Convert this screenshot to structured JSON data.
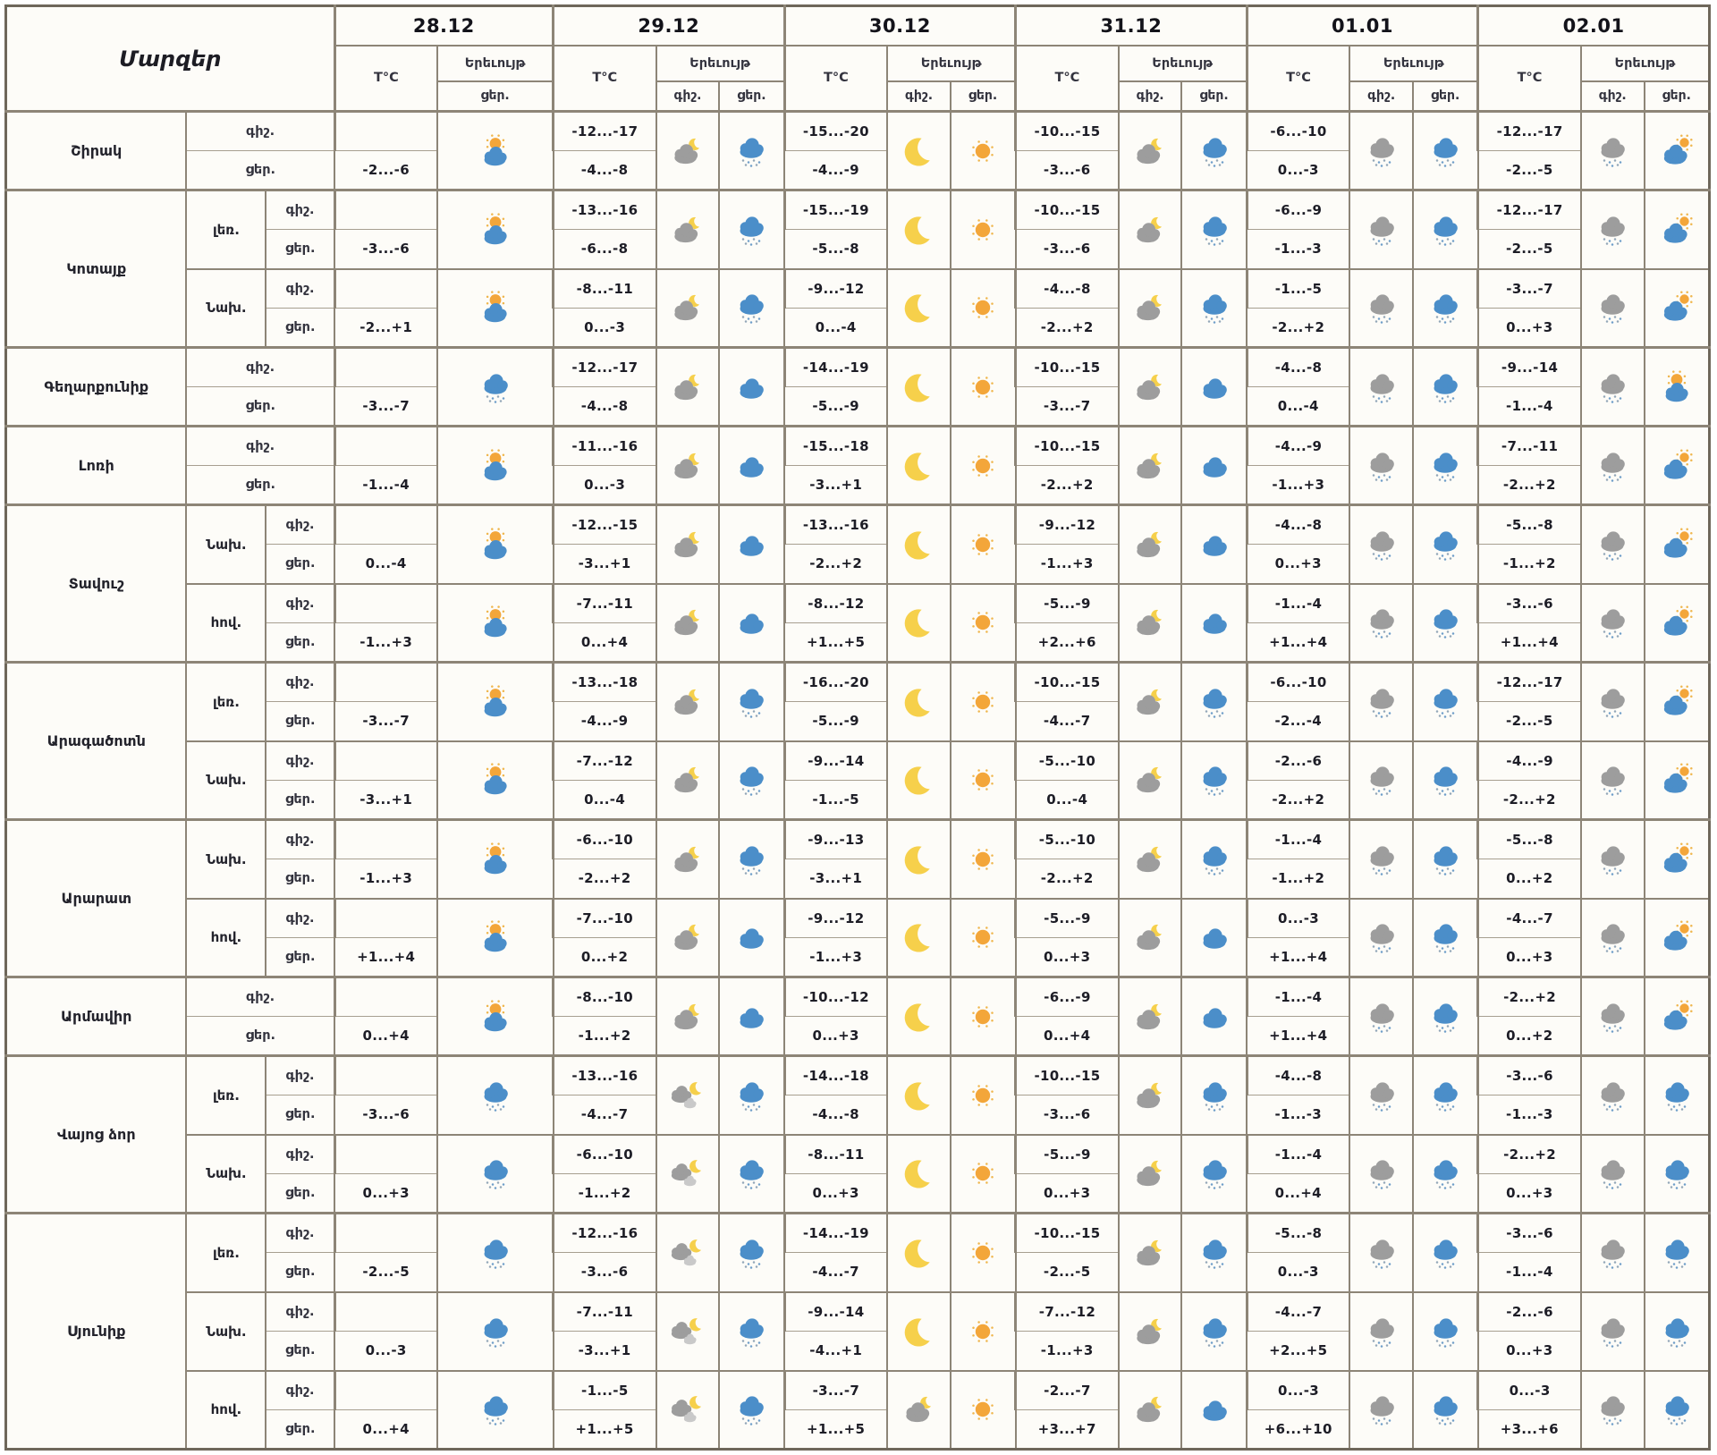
{
  "table": {
    "corner_label": "Մարզեր",
    "temp_label": "T°C",
    "phenomenon_label": "Երեւույթ",
    "night_label": "գիշ.",
    "day_label": "ցեր.",
    "dates": [
      "28.12",
      "29.12",
      "30.12",
      "31.12",
      "01.01",
      "02.01"
    ]
  },
  "colors": {
    "cloud_blue": "#4b8ec9",
    "cloud_grey": "#9d9d9d",
    "cloud_light": "#c9c9c9",
    "sun": "#f3a63a",
    "sun_ray": "#efb64d",
    "moon": "#f6d04b",
    "snow_dot_grey": "#93a7b8",
    "snow_dot_blue": "#6e9ec9",
    "border": "#8d8577",
    "border_dark": "#6e675b",
    "text": "#1d1d26"
  },
  "icon_names": {
    "sun": "clear-sun-icon",
    "moon": "clear-moon-icon",
    "sun-cloud": "sun-behind-cloud-icon",
    "cloud-sun": "cloud-with-sun-icon",
    "cloud-moon": "cloud-with-moon-icon",
    "clouds-moon": "clouds-with-moon-icon",
    "cloud-blue": "cloudy-icon",
    "snow-blue": "snow-cloud-icon",
    "snow-grey": "grey-snow-cloud-icon"
  },
  "regions": [
    {
      "name": "Շիրակ",
      "rows": [
        {
          "sub": "",
          "days": [
            [
              "",
              "-2...-6",
              null,
              "sun-cloud"
            ],
            [
              "-12...-17",
              "-4...-8",
              "cloud-moon",
              "snow-blue"
            ],
            [
              "-15...-20",
              "-4...-9",
              "moon",
              "sun"
            ],
            [
              "-10...-15",
              "-3...-6",
              "cloud-moon",
              "snow-blue"
            ],
            [
              "-6...-10",
              "0...-3",
              "snow-grey",
              "snow-blue"
            ],
            [
              "-12...-17",
              "-2...-5",
              "snow-grey",
              "cloud-sun"
            ]
          ]
        }
      ]
    },
    {
      "name": "Կոտայք",
      "rows": [
        {
          "sub": "լեռ.",
          "days": [
            [
              "",
              "-3...-6",
              null,
              "sun-cloud"
            ],
            [
              "-13...-16",
              "-6...-8",
              "cloud-moon",
              "snow-blue"
            ],
            [
              "-15...-19",
              "-5...-8",
              "moon",
              "sun"
            ],
            [
              "-10...-15",
              "-3...-6",
              "cloud-moon",
              "snow-blue"
            ],
            [
              "-6...-9",
              "-1...-3",
              "snow-grey",
              "snow-blue"
            ],
            [
              "-12...-17",
              "-2...-5",
              "snow-grey",
              "cloud-sun"
            ]
          ]
        },
        {
          "sub": "Նախ.",
          "days": [
            [
              "",
              "-2...+1",
              null,
              "sun-cloud"
            ],
            [
              "-8...-11",
              "0...-3",
              "cloud-moon",
              "snow-blue"
            ],
            [
              "-9...-12",
              "0...-4",
              "moon",
              "sun"
            ],
            [
              "-4...-8",
              "-2...+2",
              "cloud-moon",
              "snow-blue"
            ],
            [
              "-1...-5",
              "-2...+2",
              "snow-grey",
              "snow-blue"
            ],
            [
              "-3...-7",
              "0...+3",
              "snow-grey",
              "cloud-sun"
            ]
          ]
        }
      ]
    },
    {
      "name": "Գեղարքունիք",
      "rows": [
        {
          "sub": "",
          "days": [
            [
              "",
              "-3...-7",
              null,
              "snow-blue"
            ],
            [
              "-12...-17",
              "-4...-8",
              "cloud-moon",
              "cloud-blue"
            ],
            [
              "-14...-19",
              "-5...-9",
              "moon",
              "sun"
            ],
            [
              "-10...-15",
              "-3...-7",
              "cloud-moon",
              "cloud-blue"
            ],
            [
              "-4...-8",
              "0...-4",
              "snow-grey",
              "snow-blue"
            ],
            [
              "-9...-14",
              "-1...-4",
              "snow-grey",
              "sun-cloud"
            ]
          ]
        }
      ]
    },
    {
      "name": "Լոռի",
      "rows": [
        {
          "sub": "",
          "days": [
            [
              "",
              "-1...-4",
              null,
              "sun-cloud"
            ],
            [
              "-11...-16",
              "0...-3",
              "cloud-moon",
              "cloud-blue"
            ],
            [
              "-15...-18",
              "-3...+1",
              "moon",
              "sun"
            ],
            [
              "-10...-15",
              "-2...+2",
              "cloud-moon",
              "cloud-blue"
            ],
            [
              "-4...-9",
              "-1...+3",
              "snow-grey",
              "snow-blue"
            ],
            [
              "-7...-11",
              "-2...+2",
              "snow-grey",
              "cloud-sun"
            ]
          ]
        }
      ]
    },
    {
      "name": "Տավուշ",
      "rows": [
        {
          "sub": "Նախ.",
          "days": [
            [
              "",
              "0...-4",
              null,
              "sun-cloud"
            ],
            [
              "-12...-15",
              "-3...+1",
              "cloud-moon",
              "cloud-blue"
            ],
            [
              "-13...-16",
              "-2...+2",
              "moon",
              "sun"
            ],
            [
              "-9...-12",
              "-1...+3",
              "cloud-moon",
              "cloud-blue"
            ],
            [
              "-4...-8",
              "0...+3",
              "snow-grey",
              "snow-blue"
            ],
            [
              "-5...-8",
              "-1...+2",
              "snow-grey",
              "cloud-sun"
            ]
          ]
        },
        {
          "sub": "հով.",
          "days": [
            [
              "",
              "-1...+3",
              null,
              "sun-cloud"
            ],
            [
              "-7...-11",
              "0...+4",
              "cloud-moon",
              "cloud-blue"
            ],
            [
              "-8...-12",
              "+1...+5",
              "moon",
              "sun"
            ],
            [
              "-5...-9",
              "+2...+6",
              "cloud-moon",
              "cloud-blue"
            ],
            [
              "-1...-4",
              "+1...+4",
              "snow-grey",
              "snow-blue"
            ],
            [
              "-3...-6",
              "+1...+4",
              "snow-grey",
              "cloud-sun"
            ]
          ]
        }
      ]
    },
    {
      "name": "Արագածոտն",
      "rows": [
        {
          "sub": "լեռ.",
          "days": [
            [
              "",
              "-3...-7",
              null,
              "sun-cloud"
            ],
            [
              "-13...-18",
              "-4...-9",
              "cloud-moon",
              "snow-blue"
            ],
            [
              "-16...-20",
              "-5...-9",
              "moon",
              "sun"
            ],
            [
              "-10...-15",
              "-4...-7",
              "cloud-moon",
              "snow-blue"
            ],
            [
              "-6...-10",
              "-2...-4",
              "snow-grey",
              "snow-blue"
            ],
            [
              "-12...-17",
              "-2...-5",
              "snow-grey",
              "cloud-sun"
            ]
          ]
        },
        {
          "sub": "Նախ.",
          "days": [
            [
              "",
              "-3...+1",
              null,
              "sun-cloud"
            ],
            [
              "-7...-12",
              "0...-4",
              "cloud-moon",
              "snow-blue"
            ],
            [
              "-9...-14",
              "-1...-5",
              "moon",
              "sun"
            ],
            [
              "-5...-10",
              "0...-4",
              "cloud-moon",
              "snow-blue"
            ],
            [
              "-2...-6",
              "-2...+2",
              "snow-grey",
              "snow-blue"
            ],
            [
              "-4...-9",
              "-2...+2",
              "snow-grey",
              "cloud-sun"
            ]
          ]
        }
      ]
    },
    {
      "name": "Արարատ",
      "rows": [
        {
          "sub": "Նախ.",
          "days": [
            [
              "",
              "-1...+3",
              null,
              "sun-cloud"
            ],
            [
              "-6...-10",
              "-2...+2",
              "cloud-moon",
              "snow-blue"
            ],
            [
              "-9...-13",
              "-3...+1",
              "moon",
              "sun"
            ],
            [
              "-5...-10",
              "-2...+2",
              "cloud-moon",
              "snow-blue"
            ],
            [
              "-1...-4",
              "-1...+2",
              "snow-grey",
              "snow-blue"
            ],
            [
              "-5...-8",
              "0...+2",
              "snow-grey",
              "cloud-sun"
            ]
          ]
        },
        {
          "sub": "հով.",
          "days": [
            [
              "",
              "+1...+4",
              null,
              "sun-cloud"
            ],
            [
              "-7...-10",
              "0...+2",
              "cloud-moon",
              "cloud-blue"
            ],
            [
              "-9...-12",
              "-1...+3",
              "moon",
              "sun"
            ],
            [
              "-5...-9",
              "0...+3",
              "cloud-moon",
              "cloud-blue"
            ],
            [
              "0...-3",
              "+1...+4",
              "snow-grey",
              "snow-blue"
            ],
            [
              "-4...-7",
              "0...+3",
              "snow-grey",
              "cloud-sun"
            ]
          ]
        }
      ]
    },
    {
      "name": "Արմավիր",
      "rows": [
        {
          "sub": "",
          "days": [
            [
              "",
              "0...+4",
              null,
              "sun-cloud"
            ],
            [
              "-8...-10",
              "-1...+2",
              "cloud-moon",
              "cloud-blue"
            ],
            [
              "-10...-12",
              "0...+3",
              "moon",
              "sun"
            ],
            [
              "-6...-9",
              "0...+4",
              "cloud-moon",
              "cloud-blue"
            ],
            [
              "-1...-4",
              "+1...+4",
              "snow-grey",
              "snow-blue"
            ],
            [
              "-2...+2",
              "0...+2",
              "snow-grey",
              "cloud-sun"
            ]
          ]
        }
      ]
    },
    {
      "name": "Վայոց ձոր",
      "rows": [
        {
          "sub": "լեռ.",
          "days": [
            [
              "",
              "-3...-6",
              null,
              "snow-blue"
            ],
            [
              "-13...-16",
              "-4...-7",
              "clouds-moon",
              "snow-blue"
            ],
            [
              "-14...-18",
              "-4...-8",
              "moon",
              "sun"
            ],
            [
              "-10...-15",
              "-3...-6",
              "cloud-moon",
              "snow-blue"
            ],
            [
              "-4...-8",
              "-1...-3",
              "snow-grey",
              "snow-blue"
            ],
            [
              "-3...-6",
              "-1...-3",
              "snow-grey",
              "snow-blue"
            ]
          ]
        },
        {
          "sub": "Նախ.",
          "days": [
            [
              "",
              "0...+3",
              null,
              "snow-blue"
            ],
            [
              "-6...-10",
              "-1...+2",
              "clouds-moon",
              "snow-blue"
            ],
            [
              "-8...-11",
              "0...+3",
              "moon",
              "sun"
            ],
            [
              "-5...-9",
              "0...+3",
              "cloud-moon",
              "snow-blue"
            ],
            [
              "-1...-4",
              "0...+4",
              "snow-grey",
              "snow-blue"
            ],
            [
              "-2...+2",
              "0...+3",
              "snow-grey",
              "snow-blue"
            ]
          ]
        }
      ]
    },
    {
      "name": "Սյունիք",
      "rows": [
        {
          "sub": "լեռ.",
          "days": [
            [
              "",
              "-2...-5",
              null,
              "snow-blue"
            ],
            [
              "-12...-16",
              "-3...-6",
              "clouds-moon",
              "snow-blue"
            ],
            [
              "-14...-19",
              "-4...-7",
              "moon",
              "sun"
            ],
            [
              "-10...-15",
              "-2...-5",
              "cloud-moon",
              "snow-blue"
            ],
            [
              "-5...-8",
              "0...-3",
              "snow-grey",
              "snow-blue"
            ],
            [
              "-3...-6",
              "-1...-4",
              "snow-grey",
              "snow-blue"
            ]
          ]
        },
        {
          "sub": "Նախ.",
          "days": [
            [
              "",
              "0...-3",
              null,
              "snow-blue"
            ],
            [
              "-7...-11",
              "-3...+1",
              "clouds-moon",
              "snow-blue"
            ],
            [
              "-9...-14",
              "-4...+1",
              "moon",
              "sun"
            ],
            [
              "-7...-12",
              "-1...+3",
              "cloud-moon",
              "snow-blue"
            ],
            [
              "-4...-7",
              "+2...+5",
              "snow-grey",
              "snow-blue"
            ],
            [
              "-2...-6",
              "0...+3",
              "snow-grey",
              "snow-blue"
            ]
          ]
        },
        {
          "sub": "հով.",
          "days": [
            [
              "",
              "0...+4",
              null,
              "snow-blue"
            ],
            [
              "-1...-5",
              "+1...+5",
              "clouds-moon",
              "snow-blue"
            ],
            [
              "-3...-7",
              "+1...+5",
              "cloud-moon",
              "sun"
            ],
            [
              "-2...-7",
              "+3...+7",
              "cloud-moon",
              "cloud-blue"
            ],
            [
              "0...-3",
              "+6...+10",
              "snow-grey",
              "snow-blue"
            ],
            [
              "0...-3",
              "+3...+6",
              "snow-grey",
              "snow-blue"
            ]
          ]
        }
      ]
    }
  ]
}
